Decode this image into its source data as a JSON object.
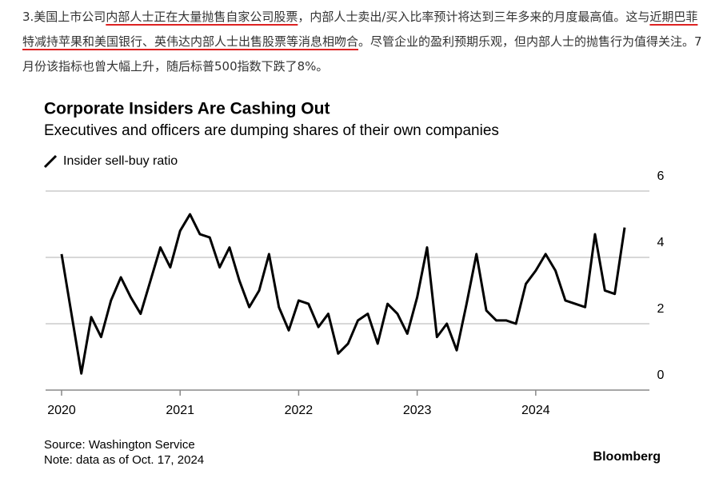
{
  "paragraph": [
    "3.美国上市公司",
    "内部人士正在大量抛售自家公司股票",
    "，内部人士卖出/买入比率预计将达到三年多来的月度最高值。这与",
    "近期巴菲特减持苹果和美国银行、英伟达内部人士出售股票等消息相吻合",
    "。尽管企业的盈利预期乐观，但内部人士的抛售行为值得关注。7月份该指标也曾大幅上升，随后标普500指数下跌了8%。"
  ],
  "chart_data": {
    "type": "line",
    "title": "Corporate Insiders Are Cashing Out",
    "subtitle": "Executives and officers are dumping shares of their own companies",
    "categories": [
      "2020",
      null,
      null,
      null,
      null,
      null,
      null,
      null,
      null,
      null,
      null,
      null,
      "2021",
      null,
      null,
      null,
      null,
      null,
      null,
      null,
      null,
      null,
      null,
      null,
      "2022",
      null,
      null,
      null,
      null,
      null,
      null,
      null,
      null,
      null,
      null,
      null,
      "2023",
      null,
      null,
      null,
      null,
      null,
      null,
      null,
      null,
      null,
      null,
      null,
      "2024",
      null,
      null,
      null,
      null,
      null,
      null,
      null,
      null,
      null
    ],
    "series": [
      {
        "name": "Insider sell-buy ratio",
        "color": "#000000",
        "values": [
          4.1,
          2.3,
          0.5,
          2.2,
          1.6,
          2.7,
          3.4,
          2.8,
          2.3,
          3.3,
          4.3,
          3.7,
          4.8,
          5.3,
          4.7,
          4.6,
          3.7,
          4.3,
          3.3,
          2.5,
          3.0,
          4.1,
          2.5,
          1.8,
          2.7,
          2.6,
          1.9,
          2.3,
          1.1,
          1.4,
          2.1,
          2.3,
          1.4,
          2.6,
          2.3,
          1.7,
          2.8,
          4.3,
          1.6,
          2.0,
          1.2,
          2.6,
          4.1,
          2.4,
          2.1,
          2.1,
          2.0,
          3.2,
          3.6,
          4.1,
          3.6,
          2.7,
          2.6,
          2.5,
          4.7,
          3.0,
          2.9,
          4.9
        ]
      }
    ],
    "ylim": [
      0,
      6
    ],
    "yticks": [
      0,
      2,
      4,
      6
    ],
    "grid": true,
    "source": "Source: Washington Service",
    "note": "Note: data as of Oct. 17, 2024",
    "brand": "Bloomberg"
  }
}
